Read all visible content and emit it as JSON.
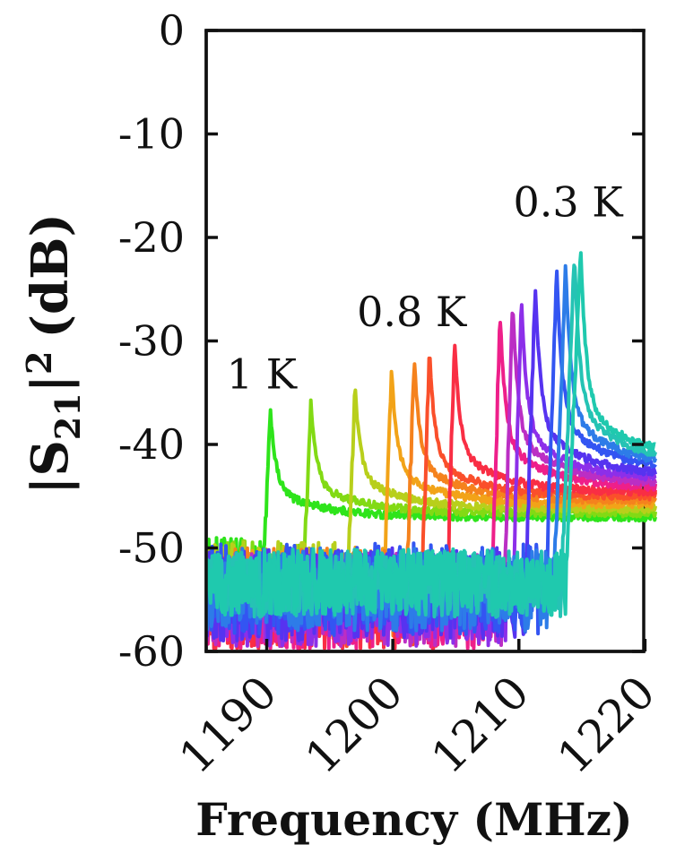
{
  "figure": {
    "background": "#ffffff",
    "axes_color": "#111111"
  },
  "chart_data": {
    "type": "line",
    "title": "",
    "xlabel": "Frequency (MHz)",
    "ylabel": "|S21|^2 (dB)",
    "ylabel_parts": {
      "p1": "|S",
      "sub": "21",
      "p2": "|",
      "sup": "2",
      "p3": "(dB)"
    },
    "xlim": [
      1185.2,
      1219.9
    ],
    "ylim": [
      -60,
      0
    ],
    "xticks": [
      1190,
      1200,
      1210,
      1220
    ],
    "yticks": [
      0,
      -10,
      -20,
      -30,
      -40,
      -50,
      -60
    ],
    "grid": false,
    "legend": "none",
    "tick_style": "inward; y ticks mirrored on left and right spines",
    "annotations": [
      {
        "text": "1 K",
        "x": 1189.6,
        "y": -33.2
      },
      {
        "text": "0.8 K",
        "x": 1201.5,
        "y": -27.2
      },
      {
        "text": "0.3 K",
        "x": 1213.9,
        "y": -16.6
      }
    ],
    "description": "Resonator transmission |S21|^2 vs frequency; one noisy sweep per bath temperature from 1 K (green, low frequency, low peak) to 0.3 K (teal, high frequency, high peak). Off-resonance noise floor spans about -50 to -60 dB; post-resonance tails settle near -41 to -47 dB.",
    "series": [
      {
        "temperature_K": 1.0,
        "color": "#2ee41b",
        "peak_freq_MHz": 1190.3,
        "peak_dB": -36.7,
        "tail_dB": -47.0,
        "noise_floor_dB": -52.0,
        "noise_amp_dB": 3.0,
        "rise_width_MHz": 0.55
      },
      {
        "temperature_K": 0.95,
        "color": "#82da14",
        "peak_freq_MHz": 1193.5,
        "peak_dB": -35.8,
        "tail_dB": -46.6,
        "noise_floor_dB": -52.5,
        "noise_amp_dB": 3.2,
        "rise_width_MHz": 0.55
      },
      {
        "temperature_K": 0.9,
        "color": "#b8cf1b",
        "peak_freq_MHz": 1197.0,
        "peak_dB": -34.3,
        "tail_dB": -46.2,
        "noise_floor_dB": -53.0,
        "noise_amp_dB": 3.6,
        "rise_width_MHz": 0.55
      },
      {
        "temperature_K": 0.85,
        "color": "#f2a318",
        "peak_freq_MHz": 1199.9,
        "peak_dB": -32.8,
        "tail_dB": -45.8,
        "noise_floor_dB": -54.0,
        "noise_amp_dB": 4.2,
        "rise_width_MHz": 0.6
      },
      {
        "temperature_K": 0.8,
        "color": "#f5821d",
        "peak_freq_MHz": 1201.7,
        "peak_dB": -31.6,
        "tail_dB": -45.4,
        "noise_floor_dB": -54.5,
        "noise_amp_dB": 4.5,
        "rise_width_MHz": 0.6
      },
      {
        "temperature_K": 0.75,
        "color": "#fa4f2b",
        "peak_freq_MHz": 1202.9,
        "peak_dB": -30.9,
        "tail_dB": -45.0,
        "noise_floor_dB": -55.0,
        "noise_amp_dB": 4.5,
        "rise_width_MHz": 0.6
      },
      {
        "temperature_K": 0.7,
        "color": "#f92e44",
        "peak_freq_MHz": 1204.9,
        "peak_dB": -29.9,
        "tail_dB": -44.6,
        "noise_floor_dB": -55.5,
        "noise_amp_dB": 4.5,
        "rise_width_MHz": 0.62
      },
      {
        "temperature_K": 0.65,
        "color": "#ee1f8a",
        "peak_freq_MHz": 1208.5,
        "peak_dB": -27.4,
        "tail_dB": -44.2,
        "noise_floor_dB": -55.5,
        "noise_amp_dB": 4.5,
        "rise_width_MHz": 0.65
      },
      {
        "temperature_K": 0.6,
        "color": "#bb2ec4",
        "peak_freq_MHz": 1209.5,
        "peak_dB": -26.4,
        "tail_dB": -43.8,
        "noise_floor_dB": -55.0,
        "noise_amp_dB": 4.5,
        "rise_width_MHz": 0.7
      },
      {
        "temperature_K": 0.55,
        "color": "#8c2fe9",
        "peak_freq_MHz": 1210.2,
        "peak_dB": -25.7,
        "tail_dB": -43.4,
        "noise_floor_dB": -55.0,
        "noise_amp_dB": 4.5,
        "rise_width_MHz": 0.7
      },
      {
        "temperature_K": 0.5,
        "color": "#5633f0",
        "peak_freq_MHz": 1211.3,
        "peak_dB": -24.7,
        "tail_dB": -43.0,
        "noise_floor_dB": -54.5,
        "noise_amp_dB": 4.5,
        "rise_width_MHz": 0.8
      },
      {
        "temperature_K": 0.45,
        "color": "#3355f2",
        "peak_freq_MHz": 1213.0,
        "peak_dB": -23.2,
        "tail_dB": -42.6,
        "noise_floor_dB": -54.0,
        "noise_amp_dB": 4.5,
        "rise_width_MHz": 0.85
      },
      {
        "temperature_K": 0.4,
        "color": "#2d7ce8",
        "peak_freq_MHz": 1213.7,
        "peak_dB": -22.3,
        "tail_dB": -42.2,
        "noise_floor_dB": -54.0,
        "noise_amp_dB": 4.0,
        "rise_width_MHz": 0.9
      },
      {
        "temperature_K": 0.35,
        "color": "#25c3b4",
        "peak_freq_MHz": 1214.4,
        "peak_dB": -21.5,
        "tail_dB": -41.8,
        "noise_floor_dB": -53.5,
        "noise_amp_dB": 3.2,
        "rise_width_MHz": 1.0
      },
      {
        "temperature_K": 0.3,
        "color": "#1fc9ae",
        "peak_freq_MHz": 1214.9,
        "peak_dB": -21.0,
        "tail_dB": -41.4,
        "noise_floor_dB": -53.3,
        "noise_amp_dB": 3.2,
        "rise_width_MHz": 1.15
      }
    ]
  }
}
